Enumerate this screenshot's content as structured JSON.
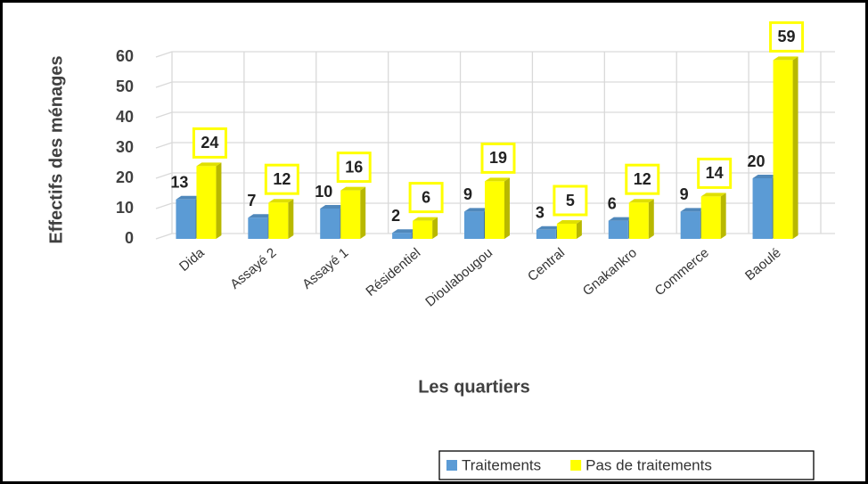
{
  "chart_data": {
    "type": "bar3d",
    "categories": [
      "Dida",
      "Assayé 2",
      "Assayé 1",
      "Résidentiel",
      "Dioulabougou",
      "Central",
      "Gnakankro",
      "Commerce",
      "Baoulé"
    ],
    "series": [
      {
        "name": "Traitements",
        "color": "#5b9bd5",
        "values": [
          13,
          7,
          10,
          2,
          9,
          3,
          6,
          9,
          20
        ]
      },
      {
        "name": "Pas de traitements",
        "color": "#ffff00",
        "values": [
          24,
          12,
          16,
          6,
          19,
          5,
          12,
          14,
          59
        ]
      }
    ],
    "ylim": [
      0,
      60
    ],
    "yticks": [
      0,
      10,
      20,
      30,
      40,
      50,
      60
    ],
    "grid": true,
    "y_label": "Effectifs des ménages",
    "x_label": "Les quartiers",
    "legend": "bottom-right"
  }
}
